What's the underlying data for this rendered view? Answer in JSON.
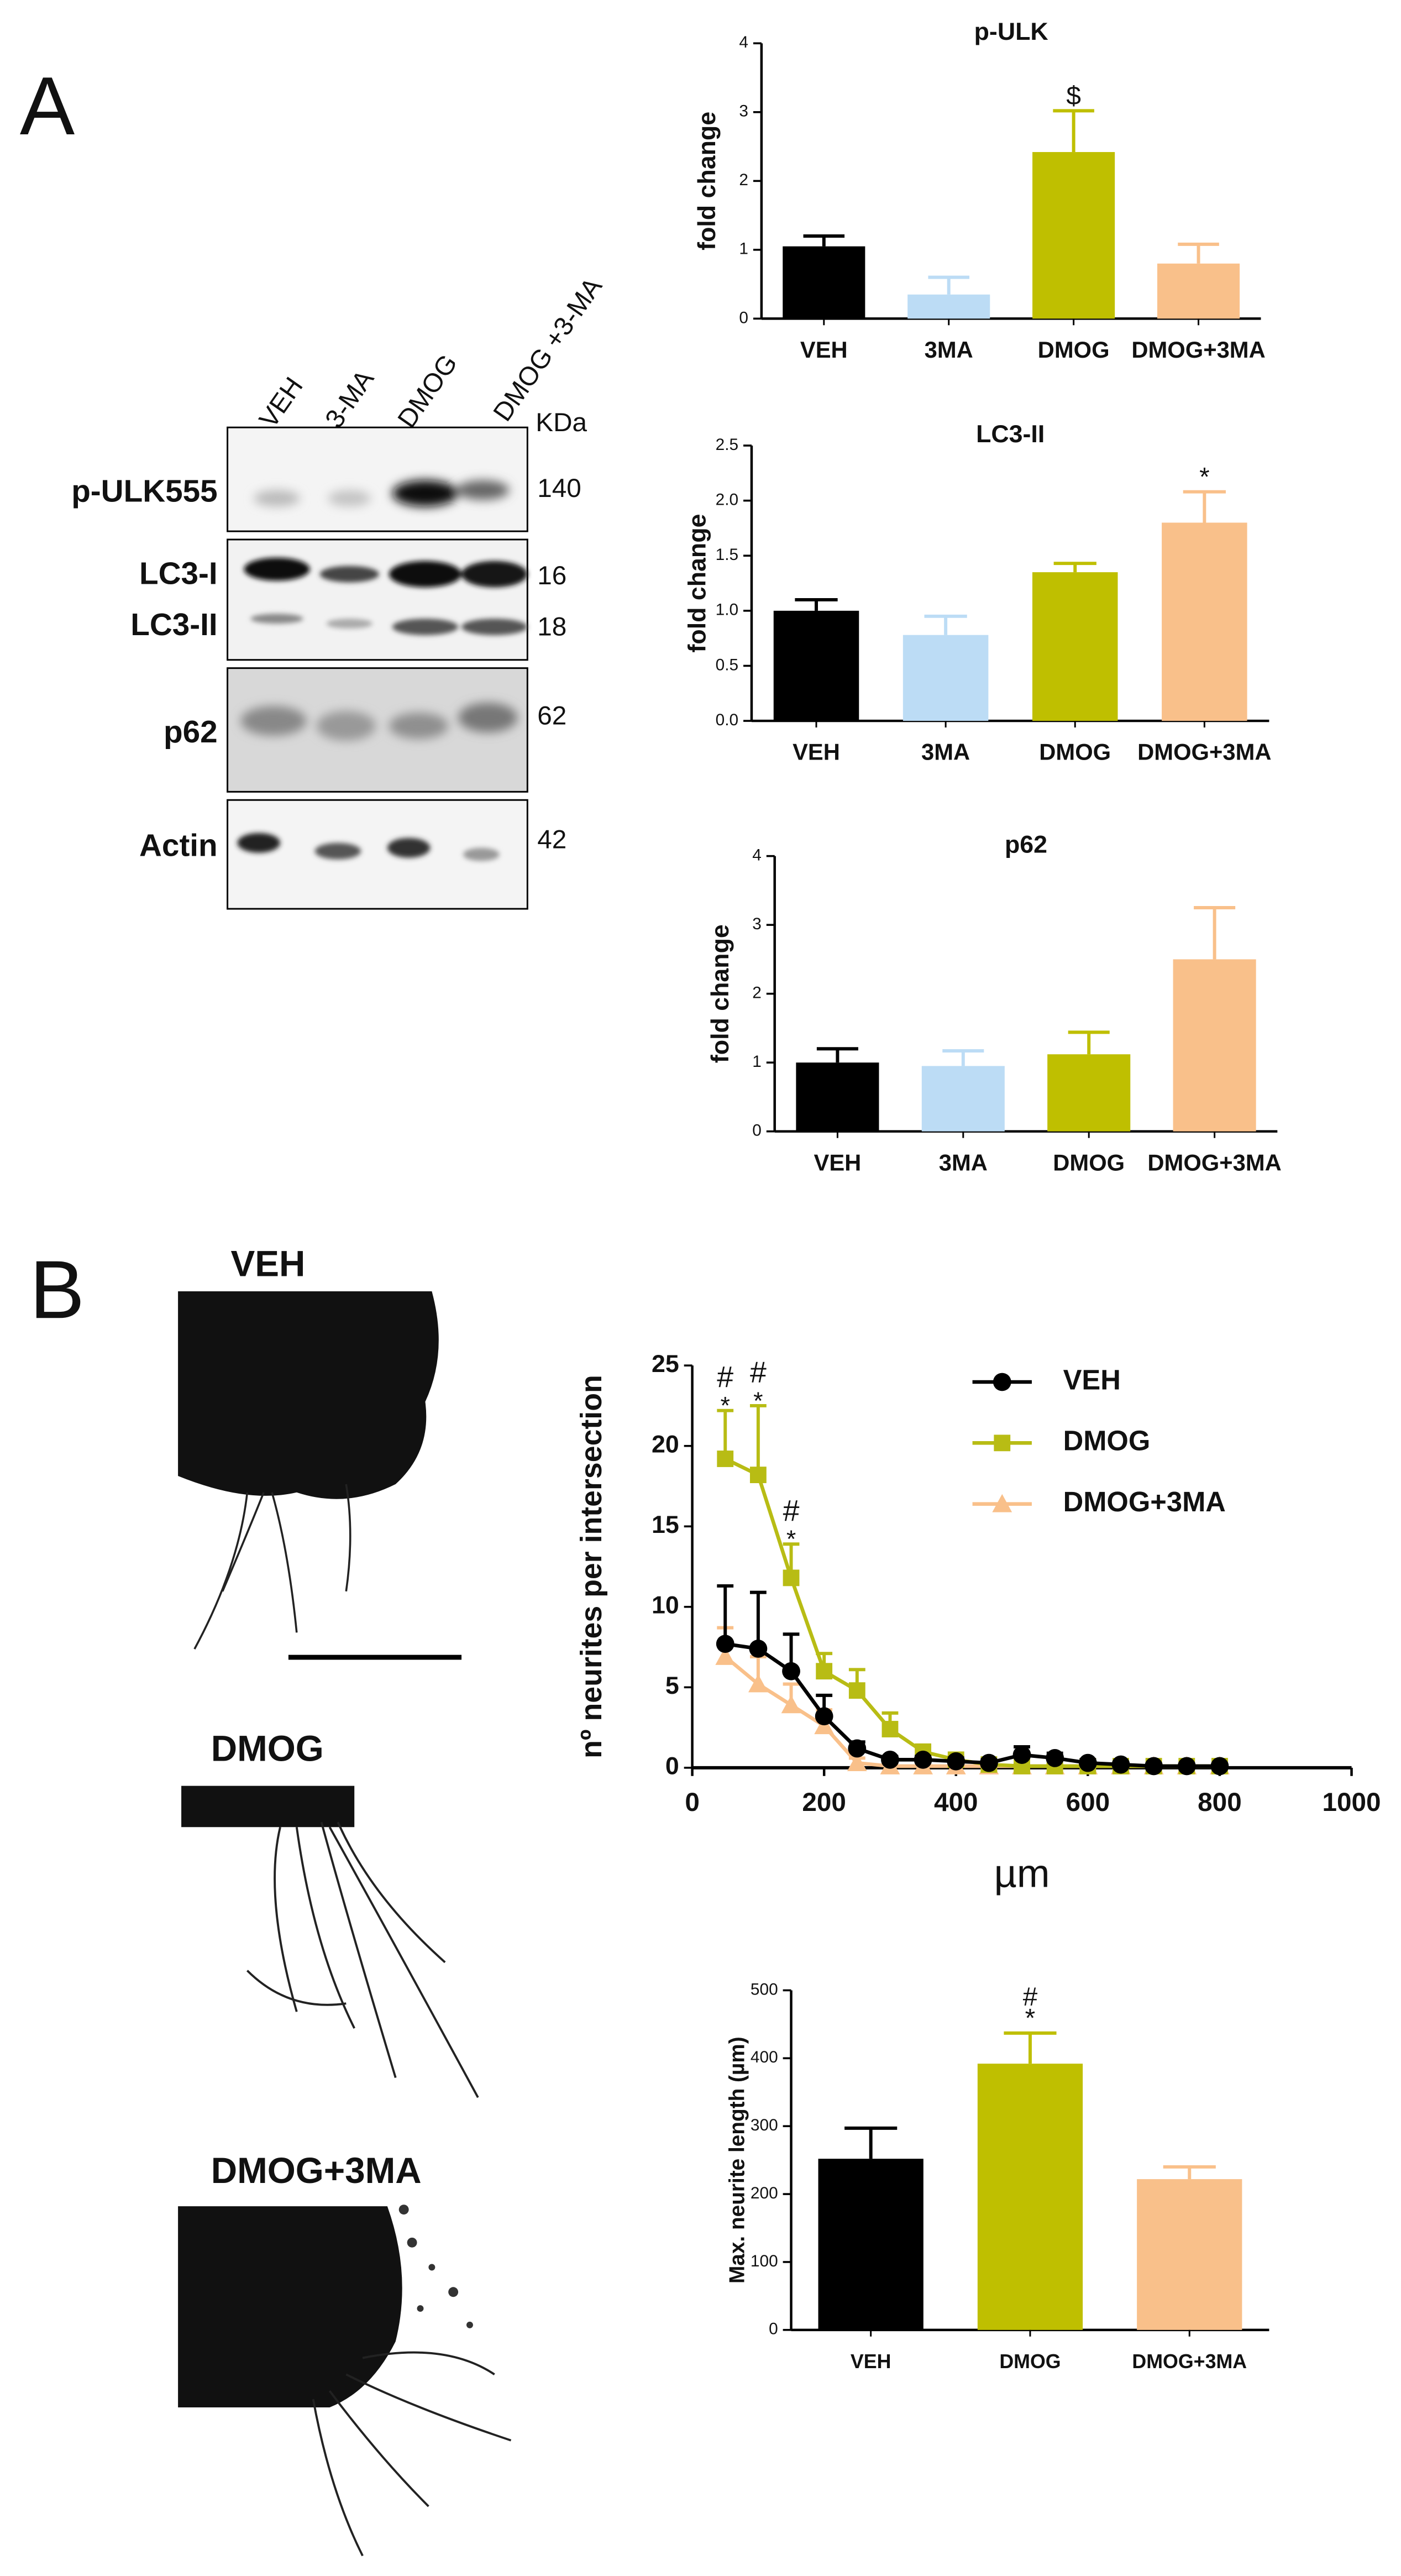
{
  "panels": {
    "a": "A",
    "b": "B"
  },
  "blot": {
    "lanes": [
      "VEH",
      "3-MA",
      "DMOG",
      "DMOG +3-MA"
    ],
    "unit": "KDa",
    "bands": [
      {
        "label": "p-ULK555",
        "kda": 140
      },
      {
        "label": "LC3-I",
        "kda": 16
      },
      {
        "label": "LC3-II",
        "kda": 18
      },
      {
        "label": "p62",
        "kda": 62
      },
      {
        "label": "Actin",
        "kda": 42
      }
    ]
  },
  "micrographs": [
    "VEH",
    "DMOG",
    "DMOG+3MA"
  ],
  "chart_data": [
    {
      "type": "bar",
      "title": "p-ULK",
      "y_label": "fold change",
      "categories": [
        "VEH",
        "3MA",
        "DMOG",
        "DMOG+3MA"
      ],
      "values": [
        1.05,
        0.35,
        2.42,
        0.8
      ],
      "errors": [
        0.15,
        0.25,
        0.6,
        0.28
      ],
      "colors": [
        "#000000",
        "#bcdcf5",
        "#bfbf00",
        "#f9c08a"
      ],
      "ylim": [
        0,
        4
      ],
      "yticks": [
        0,
        1,
        2,
        3,
        4
      ],
      "annotations": [
        {
          "category": "DMOG",
          "text": "$"
        }
      ]
    },
    {
      "type": "bar",
      "title": "LC3-II",
      "y_label": "fold change",
      "categories": [
        "VEH",
        "3MA",
        "DMOG",
        "DMOG+3MA"
      ],
      "values": [
        1.0,
        0.78,
        1.35,
        1.8
      ],
      "errors": [
        0.1,
        0.17,
        0.08,
        0.28
      ],
      "colors": [
        "#000000",
        "#bcdcf5",
        "#bfbf00",
        "#f9c08a"
      ],
      "ylim": [
        0,
        2.5
      ],
      "yticks": [
        {
          "value": 0,
          "label": "0.0"
        },
        0.5,
        {
          "value": 1,
          "label": "1.0"
        },
        1.5,
        {
          "value": 2,
          "label": "2.0"
        },
        2.5
      ],
      "annotations": [
        {
          "category": "DMOG+3MA",
          "text": "*"
        }
      ]
    },
    {
      "type": "bar",
      "title": "p62",
      "y_label": "fold change",
      "categories": [
        "VEH",
        "3MA",
        "DMOG",
        "DMOG+3MA"
      ],
      "values": [
        1.0,
        0.95,
        1.12,
        2.5
      ],
      "errors": [
        0.2,
        0.22,
        0.32,
        0.75
      ],
      "colors": [
        "#000000",
        "#bcdcf5",
        "#bfbf00",
        "#f9c08a"
      ],
      "ylim": [
        0,
        4
      ],
      "yticks": [
        0,
        1,
        2,
        3,
        4
      ],
      "annotations": []
    },
    {
      "type": "line",
      "y_label": "nº neurites per intersection",
      "x_label": "µm",
      "x": [
        50,
        100,
        150,
        200,
        250,
        300,
        350,
        400,
        450,
        500,
        550,
        600,
        650,
        700,
        750,
        800
      ],
      "series": [
        {
          "name": "VEH",
          "color": "#000000",
          "marker": "circle",
          "values": [
            7.7,
            7.4,
            6.0,
            3.2,
            1.2,
            0.5,
            0.5,
            0.4,
            0.3,
            0.8,
            0.6,
            0.3,
            0.2,
            0.1,
            0.1,
            0.1
          ],
          "errors": [
            3.6,
            3.5,
            2.3,
            1.3,
            0.4,
            0.2,
            0.2,
            0.2,
            0.2,
            0.5,
            0.3,
            0.2,
            0.1,
            0.1,
            0.1,
            0.1
          ]
        },
        {
          "name": "DMOG",
          "color": "#b8bc14",
          "marker": "square",
          "values": [
            19.2,
            18.2,
            11.8,
            6.0,
            4.8,
            2.4,
            1.0,
            0.5,
            0.2,
            0.1,
            0.1,
            0.1,
            0.1,
            0.1,
            0.1,
            0.1
          ],
          "errors": [
            3.0,
            4.3,
            2.1,
            1.1,
            1.3,
            1.0,
            0.3,
            0.2,
            0.1,
            0.1,
            0.1,
            0.1,
            0.1,
            0.1,
            0.1,
            0.1
          ]
        },
        {
          "name": "DMOG+3MA",
          "color": "#f9c08a",
          "marker": "triangle",
          "values": [
            6.9,
            5.2,
            3.9,
            2.6,
            0.3,
            0.1,
            0.1,
            0.1,
            0.1,
            0.1,
            0.1,
            0.1,
            0.1,
            0.1,
            0.1,
            0.1
          ],
          "errors": [
            1.8,
            1.7,
            1.3,
            1.0,
            0.3,
            0.1,
            0.1,
            0.1,
            0.1,
            0.1,
            0.1,
            0.1,
            0.1,
            0.1,
            0.1,
            0.1
          ]
        }
      ],
      "xlim": [
        0,
        1000
      ],
      "xticks": [
        0,
        200,
        400,
        600,
        800,
        1000
      ],
      "ylim": [
        0,
        25
      ],
      "yticks": [
        0,
        5,
        10,
        15,
        20,
        25
      ],
      "legend": "upper right",
      "annotations": [
        {
          "x": 50,
          "text": "*"
        },
        {
          "x": 50,
          "text": "#"
        },
        {
          "x": 100,
          "text": "*"
        },
        {
          "x": 100,
          "text": "#"
        },
        {
          "x": 150,
          "text": "*"
        },
        {
          "x": 150,
          "text": "#"
        }
      ]
    },
    {
      "type": "bar",
      "y_label": "Max. neurite length (µm)",
      "categories": [
        "VEH",
        "DMOG",
        "DMOG+3MA"
      ],
      "values": [
        252,
        392,
        222
      ],
      "errors": [
        45,
        45,
        18
      ],
      "colors": [
        "#000000",
        "#bfbf00",
        "#f9c08a"
      ],
      "ylim": [
        0,
        500
      ],
      "yticks": [
        0,
        100,
        200,
        300,
        400,
        500
      ],
      "annotations": [
        {
          "category": "DMOG",
          "text": "*"
        },
        {
          "category": "DMOG",
          "text": "#"
        }
      ]
    }
  ]
}
